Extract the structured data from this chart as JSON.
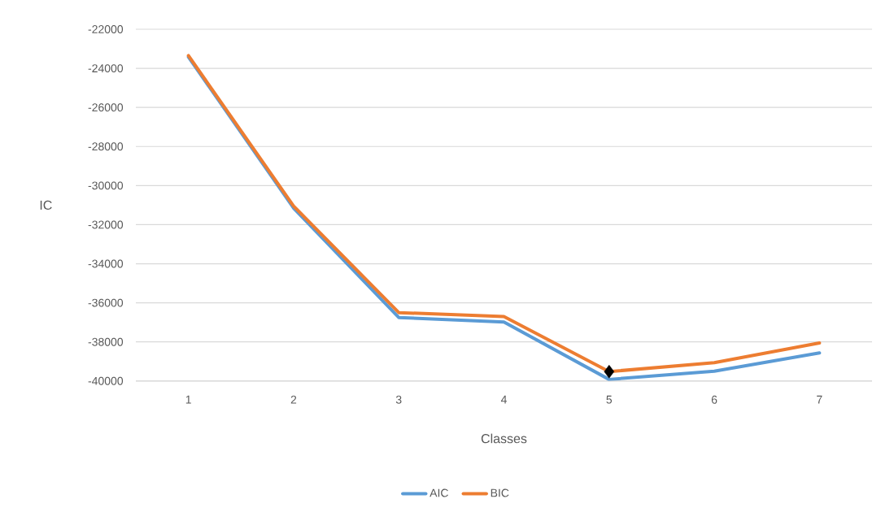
{
  "chart_data": {
    "type": "line",
    "xlabel": "Classes",
    "ylabel": "IC",
    "categories": [
      "1",
      "2",
      "3",
      "4",
      "5",
      "6",
      "7"
    ],
    "series": [
      {
        "name": "AIC",
        "color": "#5b9bd5",
        "values": [
          -23420,
          -31150,
          -36750,
          -36980,
          -39920,
          -39500,
          -38560
        ]
      },
      {
        "name": "BIC",
        "color": "#ed7d31",
        "values": [
          -23350,
          -31050,
          -36500,
          -36700,
          -39520,
          -39060,
          -38050
        ]
      },
      {
        "type": "scatter",
        "color": "#000000",
        "marker": "diamond",
        "x": [
          "5"
        ],
        "values": [
          -39520
        ]
      }
    ],
    "ylim": [
      -40000,
      -22000
    ],
    "yticks": [
      -40000,
      -38000,
      -36000,
      -34000,
      -32000,
      -30000,
      -28000,
      -26000,
      -24000,
      -22000
    ],
    "grid": "y",
    "legend": "bottom",
    "marker": "none",
    "line_style": "solid"
  }
}
